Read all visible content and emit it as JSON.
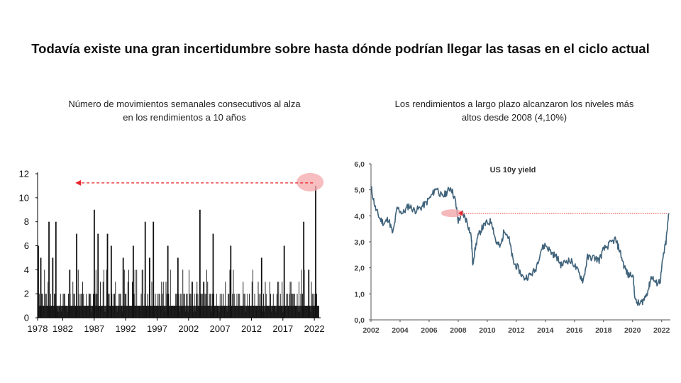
{
  "title": "Todavía existe una gran incertidumbre sobre hasta dónde podrían llegar las tasas en el ciclo actual",
  "colors": {
    "bars": "#111111",
    "yield_line": "#3f627a",
    "highlight": "#f4a7aa",
    "arrow": "#e8262a"
  },
  "chart_data": [
    {
      "type": "bar",
      "title": "Número de movimientos semanales consecutivos al alza en los rendimientos a 10 años",
      "xlabel": "",
      "ylabel": "",
      "xlim": [
        1978,
        2023
      ],
      "ylim": [
        0,
        12
      ],
      "x_ticks": [
        "1978",
        "1982",
        "1987",
        "1992",
        "1997",
        "2002",
        "2007",
        "2012",
        "2017",
        "2022"
      ],
      "y_ticks": [
        "0",
        "2",
        "4",
        "6",
        "8",
        "10",
        "12"
      ],
      "series": [
        {
          "x": [
            1978.1,
            1978.5,
            1979.8,
            1980.4,
            1980.9,
            1983.1,
            1984.2,
            1987.0,
            1987.6,
            1989.1,
            1989.7,
            1991.6,
            1993.2,
            1995.1,
            1995.8,
            1996.4,
            1998.7,
            2000.3,
            2003.8,
            2005.9,
            2008.7,
            2013.6,
            2017.2,
            2020.3,
            2021.1,
            2022.2
          ],
          "values": [
            6,
            5,
            8,
            5,
            8,
            4,
            7,
            9,
            7,
            7,
            6,
            5,
            6,
            8,
            5,
            8,
            6,
            5,
            9,
            7,
            6,
            5,
            6,
            8,
            4,
            11
          ]
        }
      ],
      "annotation": {
        "type": "arrow",
        "from_x": 2022.0,
        "to_x": 1984.0,
        "y": 11.3
      }
    },
    {
      "type": "line",
      "title": "Los rendimientos a largo plazo alcanzaron los niveles más altos desde 2008 (4,10%)",
      "inner_title": "US 10y yield",
      "xlabel": "",
      "ylabel": "",
      "xlim": [
        2002,
        2022.6
      ],
      "ylim": [
        0,
        6
      ],
      "x_ticks": [
        "2002",
        "2004",
        "2006",
        "2008",
        "2010",
        "2012",
        "2014",
        "2016",
        "2018",
        "2020",
        "2022"
      ],
      "y_ticks": [
        "0,0",
        "1,0",
        "2,0",
        "3,0",
        "4,0",
        "5,0",
        "6,0"
      ],
      "series": [
        {
          "x": [
            2002.0,
            2002.3,
            2002.6,
            2002.9,
            2003.2,
            2003.5,
            2003.8,
            2004.2,
            2004.6,
            2005.0,
            2005.4,
            2005.8,
            2006.2,
            2006.5,
            2006.9,
            2007.2,
            2007.5,
            2007.8,
            2008.0,
            2008.3,
            2008.6,
            2008.9,
            2009.0,
            2009.3,
            2009.6,
            2009.9,
            2010.3,
            2010.6,
            2010.9,
            2011.2,
            2011.5,
            2011.8,
            2012.1,
            2012.5,
            2012.9,
            2013.3,
            2013.7,
            2014.0,
            2014.4,
            2014.8,
            2015.1,
            2015.5,
            2015.9,
            2016.3,
            2016.6,
            2016.9,
            2017.3,
            2017.7,
            2018.0,
            2018.4,
            2018.8,
            2019.1,
            2019.4,
            2019.7,
            2020.0,
            2020.2,
            2020.5,
            2020.8,
            2021.1,
            2021.3,
            2021.6,
            2021.9,
            2022.1,
            2022.3,
            2022.5
          ],
          "values": [
            5.1,
            4.3,
            3.9,
            3.7,
            3.9,
            3.3,
            4.3,
            4.1,
            4.4,
            4.2,
            4.3,
            4.5,
            4.8,
            5.1,
            4.7,
            4.9,
            5.1,
            4.6,
            3.8,
            4.1,
            3.8,
            3.2,
            2.2,
            3.1,
            3.5,
            3.7,
            3.8,
            3.0,
            2.8,
            3.5,
            3.1,
            2.2,
            2.0,
            1.6,
            1.7,
            1.9,
            2.7,
            2.9,
            2.6,
            2.4,
            2.1,
            2.3,
            2.2,
            1.8,
            1.5,
            2.4,
            2.4,
            2.3,
            2.7,
            2.9,
            3.1,
            2.7,
            2.1,
            1.7,
            1.8,
            0.7,
            0.6,
            0.8,
            1.2,
            1.7,
            1.4,
            1.5,
            2.4,
            3.0,
            4.1
          ]
        }
      ],
      "reference_line": {
        "y": 4.1
      },
      "highlight_x": 2008.0
    }
  ]
}
